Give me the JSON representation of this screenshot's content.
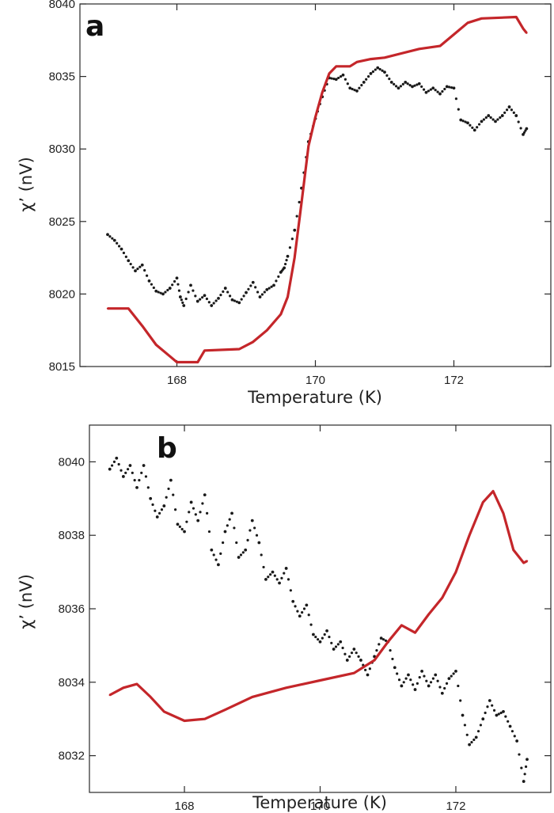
{
  "chart_data": [
    {
      "panel": "a",
      "type": "scatter",
      "xlabel": "Temperature (K)",
      "ylabel": "χ’ (nV)",
      "xlim": [
        166.6,
        173.4
      ],
      "ylim": [
        8015,
        8040
      ],
      "xticks": [
        168,
        170,
        172
      ],
      "yticks": [
        8015,
        8020,
        8025,
        8030,
        8035,
        8040
      ],
      "grid": false,
      "series": [
        {
          "style": "dotted",
          "color": "#1a1a1a",
          "points": [
            [
              167.0,
              8024.1
            ],
            [
              167.1,
              8023.7
            ],
            [
              167.2,
              8023.1
            ],
            [
              167.3,
              8022.3
            ],
            [
              167.4,
              8021.6
            ],
            [
              167.5,
              8022.0
            ],
            [
              167.6,
              8020.9
            ],
            [
              167.7,
              8020.2
            ],
            [
              167.8,
              8020.0
            ],
            [
              167.9,
              8020.4
            ],
            [
              168.0,
              8021.1
            ],
            [
              168.05,
              8019.8
            ],
            [
              168.1,
              8019.2
            ],
            [
              168.2,
              8020.6
            ],
            [
              168.3,
              8019.5
            ],
            [
              168.4,
              8019.9
            ],
            [
              168.5,
              8019.2
            ],
            [
              168.6,
              8019.7
            ],
            [
              168.7,
              8020.4
            ],
            [
              168.8,
              8019.6
            ],
            [
              168.9,
              8019.4
            ],
            [
              169.0,
              8020.1
            ],
            [
              169.1,
              8020.8
            ],
            [
              169.2,
              8019.8
            ],
            [
              169.3,
              8020.3
            ],
            [
              169.4,
              8020.6
            ],
            [
              169.5,
              8021.5
            ],
            [
              169.55,
              8021.8
            ],
            [
              169.6,
              8022.6
            ],
            [
              169.7,
              8024.4
            ],
            [
              169.8,
              8027.3
            ],
            [
              169.9,
              8030.5
            ],
            [
              170.0,
              8032.1
            ],
            [
              170.1,
              8033.6
            ],
            [
              170.2,
              8034.9
            ],
            [
              170.3,
              8034.8
            ],
            [
              170.4,
              8035.1
            ],
            [
              170.5,
              8034.2
            ],
            [
              170.6,
              8034.0
            ],
            [
              170.7,
              8034.6
            ],
            [
              170.8,
              8035.2
            ],
            [
              170.9,
              8035.6
            ],
            [
              171.0,
              8035.3
            ],
            [
              171.1,
              8034.6
            ],
            [
              171.2,
              8034.2
            ],
            [
              171.3,
              8034.6
            ],
            [
              171.4,
              8034.3
            ],
            [
              171.5,
              8034.5
            ],
            [
              171.6,
              8033.9
            ],
            [
              171.7,
              8034.2
            ],
            [
              171.8,
              8033.8
            ],
            [
              171.9,
              8034.3
            ],
            [
              172.0,
              8034.2
            ],
            [
              172.1,
              8032.0
            ],
            [
              172.2,
              8031.8
            ],
            [
              172.3,
              8031.3
            ],
            [
              172.4,
              8031.9
            ],
            [
              172.5,
              8032.3
            ],
            [
              172.6,
              8031.9
            ],
            [
              172.7,
              8032.3
            ],
            [
              172.8,
              8032.9
            ],
            [
              172.9,
              8032.3
            ],
            [
              173.0,
              8031.0
            ],
            [
              173.05,
              8031.4
            ]
          ]
        },
        {
          "style": "solid",
          "color": "#c4262a",
          "points": [
            [
              167.0,
              8019.0
            ],
            [
              167.3,
              8019.0
            ],
            [
              167.5,
              8017.8
            ],
            [
              167.7,
              8016.5
            ],
            [
              167.9,
              8015.7
            ],
            [
              168.0,
              8015.3
            ],
            [
              168.3,
              8015.3
            ],
            [
              168.4,
              8016.1
            ],
            [
              168.9,
              8016.2
            ],
            [
              169.1,
              8016.7
            ],
            [
              169.3,
              8017.5
            ],
            [
              169.5,
              8018.6
            ],
            [
              169.6,
              8019.8
            ],
            [
              169.7,
              8022.5
            ],
            [
              169.8,
              8026.3
            ],
            [
              169.9,
              8030.2
            ],
            [
              170.0,
              8032.2
            ],
            [
              170.1,
              8033.9
            ],
            [
              170.2,
              8035.2
            ],
            [
              170.3,
              8035.7
            ],
            [
              170.5,
              8035.7
            ],
            [
              170.6,
              8036.0
            ],
            [
              170.8,
              8036.2
            ],
            [
              171.0,
              8036.3
            ],
            [
              171.5,
              8036.9
            ],
            [
              171.8,
              8037.1
            ],
            [
              172.0,
              8037.9
            ],
            [
              172.2,
              8038.7
            ],
            [
              172.4,
              8039.0
            ],
            [
              172.9,
              8039.1
            ],
            [
              173.0,
              8038.3
            ],
            [
              173.05,
              8038.0
            ]
          ]
        }
      ]
    },
    {
      "panel": "b",
      "type": "scatter",
      "xlabel": "Temperature (K)",
      "ylabel": "χ’ (nV)",
      "xlim": [
        166.6,
        173.4
      ],
      "ylim": [
        8031,
        8041
      ],
      "xticks": [
        168,
        170,
        172
      ],
      "yticks": [
        8032,
        8034,
        8036,
        8038,
        8040
      ],
      "grid": false,
      "series": [
        {
          "style": "dotted",
          "color": "#1a1a1a",
          "points": [
            [
              166.9,
              8039.8
            ],
            [
              167.0,
              8040.1
            ],
            [
              167.1,
              8039.6
            ],
            [
              167.2,
              8039.9
            ],
            [
              167.3,
              8039.3
            ],
            [
              167.4,
              8039.9
            ],
            [
              167.5,
              8039.0
            ],
            [
              167.6,
              8038.5
            ],
            [
              167.7,
              8038.8
            ],
            [
              167.8,
              8039.5
            ],
            [
              167.9,
              8038.3
            ],
            [
              168.0,
              8038.1
            ],
            [
              168.1,
              8038.9
            ],
            [
              168.2,
              8038.4
            ],
            [
              168.3,
              8039.1
            ],
            [
              168.4,
              8037.6
            ],
            [
              168.5,
              8037.2
            ],
            [
              168.6,
              8038.1
            ],
            [
              168.7,
              8038.6
            ],
            [
              168.8,
              8037.4
            ],
            [
              168.9,
              8037.6
            ],
            [
              169.0,
              8038.4
            ],
            [
              169.1,
              8037.8
            ],
            [
              169.2,
              8036.8
            ],
            [
              169.3,
              8037.0
            ],
            [
              169.4,
              8036.7
            ],
            [
              169.5,
              8037.1
            ],
            [
              169.6,
              8036.2
            ],
            [
              169.7,
              8035.8
            ],
            [
              169.8,
              8036.1
            ],
            [
              169.9,
              8035.3
            ],
            [
              170.0,
              8035.1
            ],
            [
              170.1,
              8035.4
            ],
            [
              170.2,
              8034.9
            ],
            [
              170.3,
              8035.1
            ],
            [
              170.4,
              8034.6
            ],
            [
              170.5,
              8034.9
            ],
            [
              170.6,
              8034.6
            ],
            [
              170.7,
              8034.2
            ],
            [
              170.8,
              8034.7
            ],
            [
              170.9,
              8035.2
            ],
            [
              171.0,
              8035.1
            ],
            [
              171.1,
              8034.4
            ],
            [
              171.2,
              8033.9
            ],
            [
              171.3,
              8034.2
            ],
            [
              171.4,
              8033.8
            ],
            [
              171.5,
              8034.3
            ],
            [
              171.6,
              8033.9
            ],
            [
              171.7,
              8034.2
            ],
            [
              171.8,
              8033.7
            ],
            [
              171.9,
              8034.1
            ],
            [
              172.0,
              8034.3
            ],
            [
              172.1,
              8033.1
            ],
            [
              172.2,
              8032.3
            ],
            [
              172.3,
              8032.5
            ],
            [
              172.4,
              8033.0
            ],
            [
              172.5,
              8033.5
            ],
            [
              172.6,
              8033.1
            ],
            [
              172.7,
              8033.2
            ],
            [
              172.8,
              8032.8
            ],
            [
              172.9,
              8032.4
            ],
            [
              173.0,
              8031.3
            ],
            [
              173.05,
              8031.9
            ]
          ]
        },
        {
          "style": "solid",
          "color": "#c4262a",
          "points": [
            [
              166.9,
              8033.65
            ],
            [
              167.1,
              8033.85
            ],
            [
              167.3,
              8033.95
            ],
            [
              167.5,
              8033.6
            ],
            [
              167.7,
              8033.2
            ],
            [
              168.0,
              8032.95
            ],
            [
              168.3,
              8033.0
            ],
            [
              168.6,
              8033.25
            ],
            [
              169.0,
              8033.6
            ],
            [
              169.5,
              8033.85
            ],
            [
              170.0,
              8034.05
            ],
            [
              170.5,
              8034.25
            ],
            [
              170.8,
              8034.6
            ],
            [
              171.0,
              8035.1
            ],
            [
              171.2,
              8035.55
            ],
            [
              171.4,
              8035.35
            ],
            [
              171.6,
              8035.85
            ],
            [
              171.8,
              8036.3
            ],
            [
              172.0,
              8037.0
            ],
            [
              172.2,
              8038.0
            ],
            [
              172.4,
              8038.9
            ],
            [
              172.55,
              8039.2
            ],
            [
              172.7,
              8038.6
            ],
            [
              172.85,
              8037.6
            ],
            [
              173.0,
              8037.25
            ],
            [
              173.05,
              8037.3
            ]
          ]
        }
      ]
    }
  ]
}
